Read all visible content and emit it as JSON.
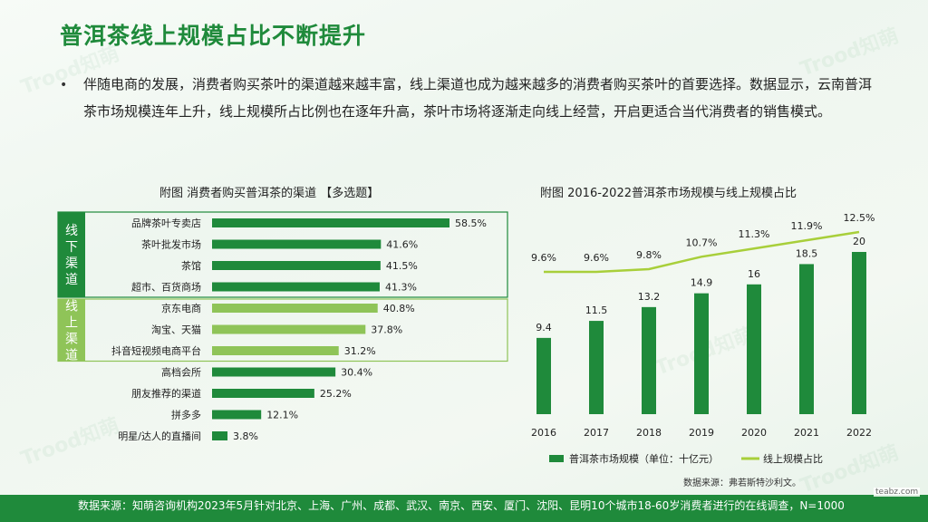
{
  "title": "普洱茶线上规模占比不断提升",
  "intro": "伴随电商的发展，消费者购买茶叶的渠道越来越丰富，线上渠道也成为越来越多的消费者购买茶叶的首要选择。数据显示，云南普洱茶市场规模连年上升，线上规模所占比例也在逐年升高，茶叶市场将逐渐走向线上经营，开启更适合当代消费者的销售模式。",
  "bullet": "•",
  "watermark": "Trood知萌",
  "site": "teabz.com",
  "footer": "数据来源：知萌咨询机构2023年5月针对北京、上海、广州、成都、武汉、南京、西安、厦门、沈阳、昆明10个城市18-60岁消费者进行的在线调查，N=1000",
  "source_note": "数据来源：弗若斯特沙利文。",
  "colors": {
    "dark_green": "#1f8a3b",
    "light_green": "#8fc458",
    "line_green": "#a8cf3a",
    "group_offline": "#1f8a3b",
    "group_online": "#8fc458"
  },
  "chart_data": [
    {
      "type": "bar",
      "orientation": "horizontal",
      "title": "附图 消费者购买普洱茶的渠道 【多选题】",
      "categories": [
        "品牌茶叶专卖店",
        "茶叶批发市场",
        "茶馆",
        "超市、百货商场",
        "京东电商",
        "淘宝、天猫",
        "抖音短视频电商平台",
        "高档会所",
        "朋友推荐的渠道",
        "拼多多",
        "明星/达人的直播间"
      ],
      "values": [
        58.5,
        41.6,
        41.5,
        41.3,
        40.8,
        37.8,
        31.2,
        30.4,
        25.2,
        12.1,
        3.8
      ],
      "value_labels": [
        "58.5%",
        "41.6%",
        "41.5%",
        "41.3%",
        "40.8%",
        "37.8%",
        "31.2%",
        "30.4%",
        "25.2%",
        "12.1%",
        "3.8%"
      ],
      "groups": [
        {
          "name": "线下渠道",
          "members": [
            "品牌茶叶专卖店",
            "茶叶批发市场",
            "茶馆",
            "超市、百货商场"
          ]
        },
        {
          "name": "线上渠道",
          "members": [
            "京东电商",
            "淘宝、天猫",
            "抖音短视频电商平台"
          ]
        }
      ],
      "xlim": [
        0,
        60
      ]
    },
    {
      "type": "bar+line",
      "title": "附图 2016-2022普洱茶市场规模与线上规模占比",
      "categories": [
        "2016",
        "2017",
        "2018",
        "2019",
        "2020",
        "2021",
        "2022"
      ],
      "series": [
        {
          "name": "普洱茶市场规模（单位：十亿元）",
          "type": "bar",
          "values": [
            9.4,
            11.5,
            13.2,
            14.9,
            16,
            18.5,
            20
          ],
          "labels": [
            "9.4",
            "11.5",
            "13.2",
            "14.9",
            "16",
            "18.5",
            "20"
          ]
        },
        {
          "name": "线上规模占比",
          "type": "line",
          "values": [
            9.6,
            9.6,
            9.8,
            10.7,
            11.3,
            11.9,
            12.5
          ],
          "labels": [
            "9.6%",
            "9.6%",
            "9.8%",
            "10.7%",
            "11.3%",
            "11.9%",
            "12.5%"
          ]
        }
      ],
      "ylim_bar": [
        0,
        22
      ],
      "ylim_line": [
        0,
        13
      ],
      "legend_position": "bottom"
    }
  ]
}
